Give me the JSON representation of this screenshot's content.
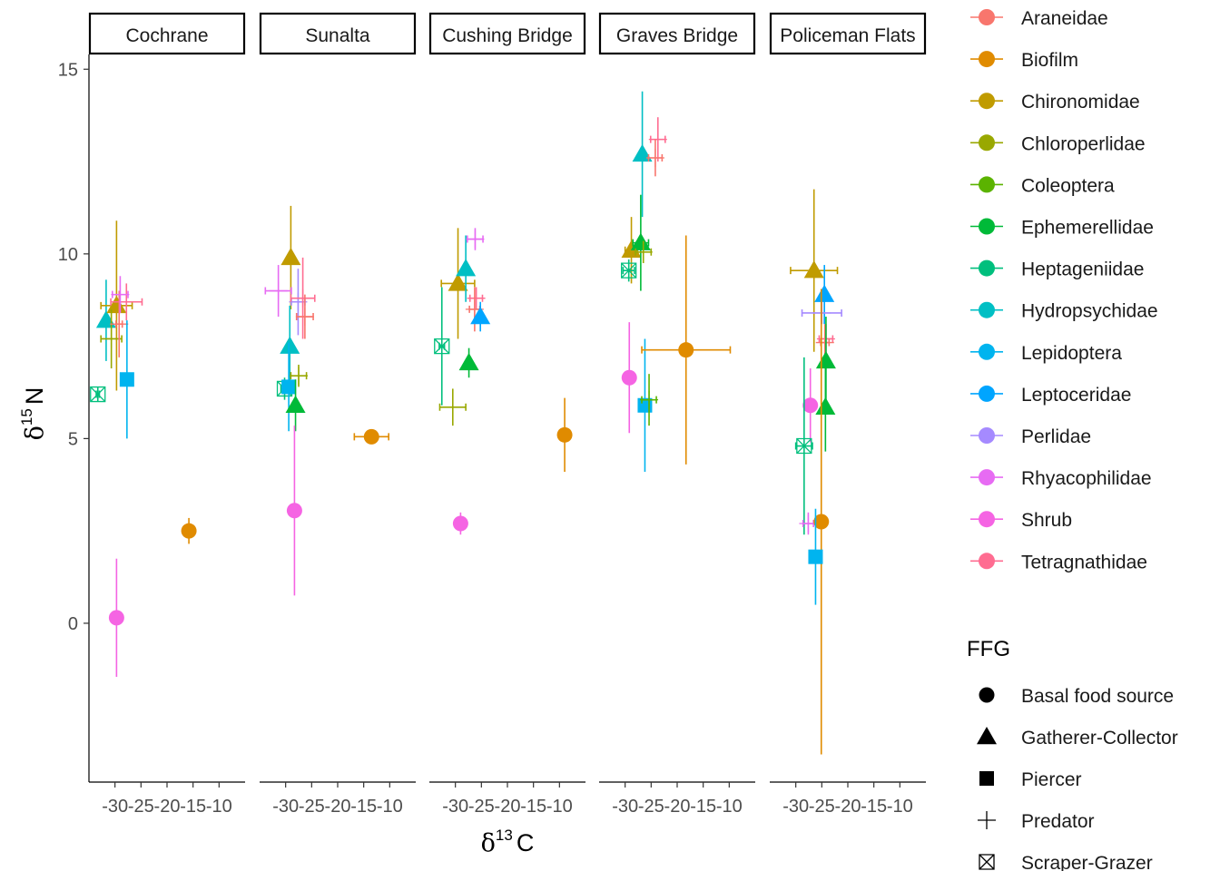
{
  "chart_data": {
    "type": "scatter",
    "title": "",
    "xlabel": "δ13 C",
    "ylabel": "δ15 N",
    "xlim": [
      -35,
      -5
    ],
    "ylim": [
      -4.3,
      15.4
    ],
    "x_ticks": [
      -30,
      -25,
      -20,
      -15,
      -10
    ],
    "x_tick_labels": [
      "-30",
      "-25",
      "-20",
      "-15",
      "-10"
    ],
    "y_ticks": [
      0,
      5,
      10,
      15
    ],
    "y_tick_labels": [
      "0",
      "5",
      "10",
      "15"
    ],
    "grid": false,
    "legend_position": "right",
    "facets": [
      "Cochrane",
      "Sunalta",
      "Cushing Bridge",
      "Graves Bridge",
      "Policeman Flats"
    ],
    "taxa_legend": [
      {
        "name": "Araneidae",
        "color": "#F8766D"
      },
      {
        "name": "Biofilm",
        "color": "#E08B00"
      },
      {
        "name": "Chironomidae",
        "color": "#C09B00"
      },
      {
        "name": "Chloroperlidae",
        "color": "#99A800"
      },
      {
        "name": "Coleoptera",
        "color": "#5BB300"
      },
      {
        "name": "Ephemerellidae",
        "color": "#00BA38"
      },
      {
        "name": "Heptageniidae",
        "color": "#00BF7D"
      },
      {
        "name": "Hydropsychidae",
        "color": "#00BFC4"
      },
      {
        "name": "Lepidoptera",
        "color": "#00B4EF"
      },
      {
        "name": "Leptoceridae",
        "color": "#00A5FF"
      },
      {
        "name": "Perlidae",
        "color": "#A58AFF"
      },
      {
        "name": "Rhyacophilidae",
        "color": "#E76BF3"
      },
      {
        "name": "Shrub",
        "color": "#F564E3"
      },
      {
        "name": "Tetragnathidae",
        "color": "#FF6C91"
      }
    ],
    "ffg_title": "FFG",
    "ffg_legend": [
      {
        "name": "Basal food source",
        "shape": "circle"
      },
      {
        "name": "Gatherer-Collector",
        "shape": "triangle"
      },
      {
        "name": "Piercer",
        "shape": "square"
      },
      {
        "name": "Predator",
        "shape": "plus"
      },
      {
        "name": "Scraper-Grazer",
        "shape": "boxx"
      }
    ],
    "points": [
      {
        "facet": 0,
        "taxon": "Heptageniidae",
        "shape": "boxx",
        "x": -33.3,
        "y": 6.2,
        "xerr": 0.3,
        "yerr": 0.2
      },
      {
        "facet": 0,
        "taxon": "Hydropsychidae",
        "shape": "triangle",
        "x": -31.7,
        "y": 8.2,
        "xerr": 0.4,
        "yerr": 1.1
      },
      {
        "facet": 0,
        "taxon": "Chironomidae",
        "shape": "triangle",
        "x": -29.7,
        "y": 8.6,
        "xerr": 3.0,
        "yerr": 2.3
      },
      {
        "facet": 0,
        "taxon": "Chloroperlidae",
        "shape": "plus",
        "x": -30.7,
        "y": 7.7,
        "xerr": 2.0,
        "yerr": 0.8
      },
      {
        "facet": 0,
        "taxon": "Araneidae",
        "shape": "plus",
        "x": -29.2,
        "y": 8.1,
        "xerr": 0.6,
        "yerr": 0.9
      },
      {
        "facet": 0,
        "taxon": "Tetragnathidae",
        "shape": "plus",
        "x": -27.8,
        "y": 8.7,
        "xerr": 3.0,
        "yerr": 0.5
      },
      {
        "facet": 0,
        "taxon": "Rhyacophilidae",
        "shape": "plus",
        "x": -29.0,
        "y": 8.9,
        "xerr": 1.5,
        "yerr": 0.5
      },
      {
        "facet": 0,
        "taxon": "Lepidoptera",
        "shape": "square",
        "x": -27.7,
        "y": 6.6,
        "xerr": 0.5,
        "yerr": 1.6
      },
      {
        "facet": 0,
        "taxon": "Shrub",
        "shape": "circle",
        "x": -29.7,
        "y": 0.15,
        "xerr": 0.3,
        "yerr": 1.6
      },
      {
        "facet": 0,
        "taxon": "Biofilm",
        "shape": "circle",
        "x": -15.8,
        "y": 2.5,
        "xerr": 0.3,
        "yerr": 0.35
      },
      {
        "facet": 1,
        "taxon": "Chironomidae",
        "shape": "triangle",
        "x": -29.0,
        "y": 9.9,
        "xerr": 0.5,
        "yerr": 1.4
      },
      {
        "facet": 1,
        "taxon": "Rhyacophilidae",
        "shape": "plus",
        "x": -31.4,
        "y": 9.0,
        "xerr": 2.5,
        "yerr": 0.7
      },
      {
        "facet": 1,
        "taxon": "Perlidae",
        "shape": "plus",
        "x": -27.6,
        "y": 8.7,
        "xerr": 1.3,
        "yerr": 0.9
      },
      {
        "facet": 1,
        "taxon": "Tetragnathidae",
        "shape": "plus",
        "x": -26.7,
        "y": 8.8,
        "xerr": 2.3,
        "yerr": 1.1
      },
      {
        "facet": 1,
        "taxon": "Araneidae",
        "shape": "plus",
        "x": -26.3,
        "y": 8.3,
        "xerr": 1.6,
        "yerr": 0.6
      },
      {
        "facet": 1,
        "taxon": "Hydropsychidae",
        "shape": "triangle",
        "x": -29.2,
        "y": 7.5,
        "xerr": 0.5,
        "yerr": 1.1
      },
      {
        "facet": 1,
        "taxon": "Chloroperlidae",
        "shape": "plus",
        "x": -27.5,
        "y": 6.7,
        "xerr": 1.5,
        "yerr": 0.3
      },
      {
        "facet": 1,
        "taxon": "Heptageniidae",
        "shape": "boxx",
        "x": -30.2,
        "y": 6.35,
        "xerr": 0.7,
        "yerr": 0.3
      },
      {
        "facet": 1,
        "taxon": "Lepidoptera",
        "shape": "square",
        "x": -29.4,
        "y": 6.4,
        "xerr": 0.5,
        "yerr": 1.2
      },
      {
        "facet": 1,
        "taxon": "Ephemerellidae",
        "shape": "triangle",
        "x": -28.1,
        "y": 5.9,
        "xerr": 0.5,
        "yerr": 0.7
      },
      {
        "facet": 1,
        "taxon": "Shrub",
        "shape": "circle",
        "x": -28.3,
        "y": 3.05,
        "xerr": 0.3,
        "yerr": 2.3
      },
      {
        "facet": 1,
        "taxon": "Biofilm",
        "shape": "circle",
        "x": -13.5,
        "y": 5.05,
        "xerr": 3.3,
        "yerr": 0.15
      },
      {
        "facet": 2,
        "taxon": "Chironomidae",
        "shape": "triangle",
        "x": -29.5,
        "y": 9.2,
        "xerr": 3.2,
        "yerr": 1.5
      },
      {
        "facet": 2,
        "taxon": "Hydropsychidae",
        "shape": "triangle",
        "x": -28.0,
        "y": 9.6,
        "xerr": 0.5,
        "yerr": 0.9
      },
      {
        "facet": 2,
        "taxon": "Rhyacophilidae",
        "shape": "plus",
        "x": -26.2,
        "y": 10.4,
        "xerr": 1.5,
        "yerr": 0.3
      },
      {
        "facet": 2,
        "taxon": "Tetragnathidae",
        "shape": "plus",
        "x": -26.0,
        "y": 8.8,
        "xerr": 1.2,
        "yerr": 0.3
      },
      {
        "facet": 2,
        "taxon": "Araneidae",
        "shape": "plus",
        "x": -26.3,
        "y": 8.5,
        "xerr": 1.0,
        "yerr": 0.6
      },
      {
        "facet": 2,
        "taxon": "Leptoceridae",
        "shape": "triangle",
        "x": -25.2,
        "y": 8.3,
        "xerr": 0.5,
        "yerr": 0.4
      },
      {
        "facet": 2,
        "taxon": "Heptageniidae",
        "shape": "boxx",
        "x": -32.6,
        "y": 7.5,
        "xerr": 0.5,
        "yerr": 1.6
      },
      {
        "facet": 2,
        "taxon": "Ephemerellidae",
        "shape": "triangle",
        "x": -27.4,
        "y": 7.05,
        "xerr": 0.4,
        "yerr": 0.4
      },
      {
        "facet": 2,
        "taxon": "Chloroperlidae",
        "shape": "plus",
        "x": -30.5,
        "y": 5.85,
        "xerr": 2.5,
        "yerr": 0.5
      },
      {
        "facet": 2,
        "taxon": "Shrub",
        "shape": "circle",
        "x": -29.0,
        "y": 2.7,
        "xerr": 0.3,
        "yerr": 0.3
      },
      {
        "facet": 2,
        "taxon": "Biofilm",
        "shape": "circle",
        "x": -9.0,
        "y": 5.1,
        "xerr": 0.8,
        "yerr": 1.0
      },
      {
        "facet": 3,
        "taxon": "Hydropsychidae",
        "shape": "triangle",
        "x": -26.7,
        "y": 12.7,
        "xerr": 0.3,
        "yerr": 1.7
      },
      {
        "facet": 3,
        "taxon": "Tetragnathidae",
        "shape": "plus",
        "x": -23.7,
        "y": 13.1,
        "xerr": 1.4,
        "yerr": 0.6
      },
      {
        "facet": 3,
        "taxon": "Araneidae",
        "shape": "plus",
        "x": -24.2,
        "y": 12.6,
        "xerr": 1.3,
        "yerr": 0.5
      },
      {
        "facet": 3,
        "taxon": "Chironomidae",
        "shape": "triangle",
        "x": -28.8,
        "y": 10.1,
        "xerr": 1.2,
        "yerr": 0.9
      },
      {
        "facet": 3,
        "taxon": "Ephemerellidae",
        "shape": "triangle",
        "x": -27.0,
        "y": 10.3,
        "xerr": 1.5,
        "yerr": 1.3
      },
      {
        "facet": 3,
        "taxon": "Chloroperlidae",
        "shape": "plus",
        "x": -26.5,
        "y": 10.05,
        "xerr": 1.5,
        "yerr": 0.3
      },
      {
        "facet": 3,
        "taxon": "Heptageniidae",
        "shape": "boxx",
        "x": -29.3,
        "y": 9.55,
        "xerr": 1.1,
        "yerr": 0.3
      },
      {
        "facet": 3,
        "taxon": "Shrub",
        "shape": "circle",
        "x": -29.2,
        "y": 6.65,
        "xerr": 0.3,
        "yerr": 1.5
      },
      {
        "facet": 3,
        "taxon": "Lepidoptera",
        "shape": "square",
        "x": -26.2,
        "y": 5.9,
        "xerr": 0.3,
        "yerr": 1.8
      },
      {
        "facet": 3,
        "taxon": "Coleoptera",
        "shape": "plus",
        "x": -25.4,
        "y": 6.05,
        "xerr": 1.4,
        "yerr": 0.7
      },
      {
        "facet": 3,
        "taxon": "Biofilm",
        "shape": "circle",
        "x": -18.3,
        "y": 7.4,
        "xerr": 8.5,
        "yerr": 3.1
      },
      {
        "facet": 4,
        "taxon": "Chironomidae",
        "shape": "triangle",
        "x": -26.5,
        "y": 9.55,
        "xerr": 4.5,
        "yerr": 2.2
      },
      {
        "facet": 4,
        "taxon": "Leptoceridae",
        "shape": "triangle",
        "x": -24.5,
        "y": 8.9,
        "xerr": 0.4,
        "yerr": 0.8
      },
      {
        "facet": 4,
        "taxon": "Perlidae",
        "shape": "plus",
        "x": -25.0,
        "y": 8.4,
        "xerr": 3.8,
        "yerr": 0.3
      },
      {
        "facet": 4,
        "taxon": "Tetragnathidae",
        "shape": "plus",
        "x": -24.2,
        "y": 7.7,
        "xerr": 1.3,
        "yerr": 0.4
      },
      {
        "facet": 4,
        "taxon": "Araneidae",
        "shape": "plus",
        "x": -24.4,
        "y": 7.6,
        "xerr": 0.8,
        "yerr": 0.5
      },
      {
        "facet": 4,
        "taxon": "Ephemerellidae",
        "shape": "triangle",
        "x": -24.2,
        "y": 7.1,
        "xerr": 0.4,
        "yerr": 1.2
      },
      {
        "facet": 4,
        "taxon": "Ephemerellidae",
        "shape": "triangle",
        "x": -24.3,
        "y": 5.85,
        "xerr": 0.3,
        "yerr": 1.2
      },
      {
        "facet": 4,
        "taxon": "Shrub",
        "shape": "circle",
        "x": -27.2,
        "y": 5.9,
        "xerr": 0.3,
        "yerr": 1.0
      },
      {
        "facet": 4,
        "taxon": "Heptageniidae",
        "shape": "boxx",
        "x": -28.4,
        "y": 4.8,
        "xerr": 1.6,
        "yerr": 2.4
      },
      {
        "facet": 4,
        "taxon": "Rhyacophilidae",
        "shape": "plus",
        "x": -27.6,
        "y": 2.7,
        "xerr": 1.0,
        "yerr": 0.3
      },
      {
        "facet": 4,
        "taxon": "Biofilm",
        "shape": "circle",
        "x": -25.1,
        "y": 2.75,
        "xerr": 0.3,
        "yerr": 6.3
      },
      {
        "facet": 4,
        "taxon": "Lepidoptera",
        "shape": "square",
        "x": -26.2,
        "y": 1.8,
        "xerr": 0.3,
        "yerr": 1.3
      }
    ]
  }
}
